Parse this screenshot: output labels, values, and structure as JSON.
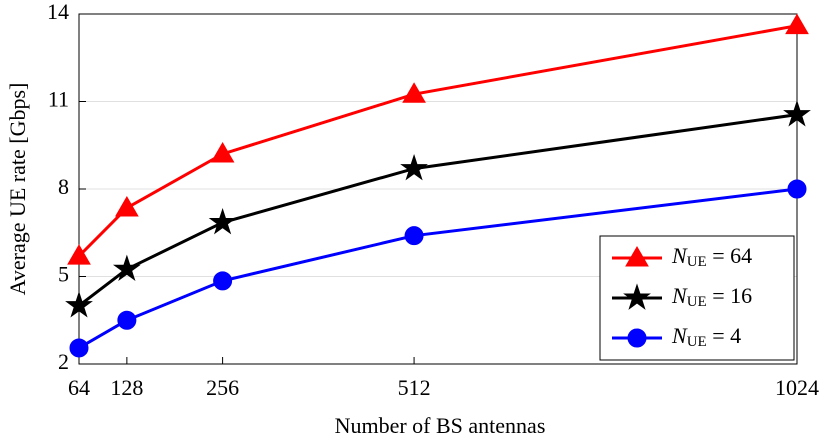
{
  "chart_data": {
    "type": "line",
    "x_label": "Number of BS antennas",
    "y_label": "Average UE rate [Gbps]",
    "x": [
      64,
      128,
      256,
      512,
      1024
    ],
    "series": [
      {
        "name": "NUE = 64",
        "color": "#ff0000",
        "marker": "triangle",
        "values": [
          5.7,
          7.35,
          9.2,
          11.25,
          13.6
        ]
      },
      {
        "name": "NUE = 16",
        "color": "#000000",
        "marker": "star",
        "values": [
          4.0,
          5.25,
          6.85,
          8.7,
          10.55
        ]
      },
      {
        "name": "NUE = 4",
        "color": "#0000ff",
        "marker": "circle",
        "values": [
          2.55,
          3.5,
          4.85,
          6.4,
          8.0
        ]
      }
    ],
    "xlim": [
      64,
      1024
    ],
    "xticks": [
      64,
      128,
      256,
      512,
      1024
    ],
    "ylim": [
      2,
      14
    ],
    "yticks": [
      2,
      5,
      8,
      11,
      14
    ],
    "grid": "y",
    "legend": "lower right"
  }
}
